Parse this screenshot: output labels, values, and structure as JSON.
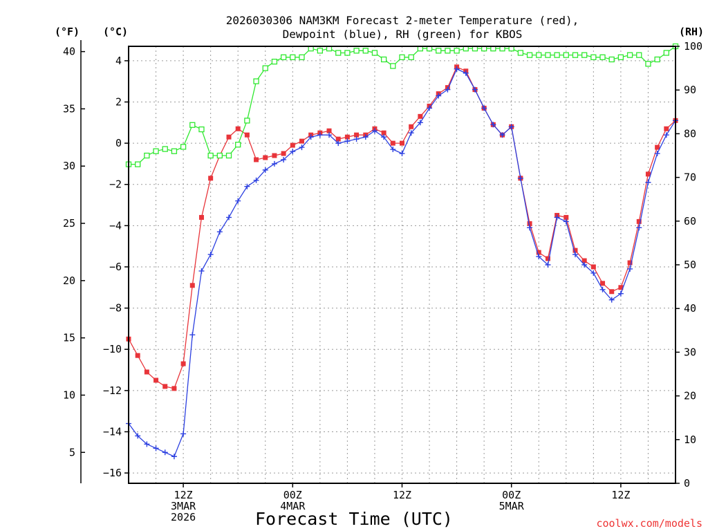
{
  "chart_data": {
    "type": "line",
    "title_lines": [
      "2026030306 NAM3KM Forecast 2-meter Temperature (red),",
      "Dewpoint (blue), RH (green) for KBOS"
    ],
    "xlabel": "Forecast Time (UTC)",
    "credit": "coolwx.com/models",
    "unit_labels": {
      "fahrenheit": "(°F)",
      "celsius": "(°C)",
      "rh": "(RH)"
    },
    "x_unit": "forecast hours from 2026-03-03 06Z",
    "xlim": [
      0,
      60
    ],
    "x_ticks": [
      {
        "hour": 6,
        "lines": [
          "12Z",
          "3MAR",
          "2026"
        ]
      },
      {
        "hour": 18,
        "lines": [
          "00Z",
          "4MAR"
        ]
      },
      {
        "hour": 30,
        "lines": [
          "12Z"
        ]
      },
      {
        "hour": 42,
        "lines": [
          "00Z",
          "5MAR"
        ]
      },
      {
        "hour": 54,
        "lines": [
          "12Z"
        ]
      }
    ],
    "y_celsius": {
      "lim": [
        -16.5,
        4.7
      ],
      "ticks": [
        -16,
        -14,
        -12,
        -10,
        -8,
        -6,
        -4,
        -2,
        0,
        2,
        4
      ]
    },
    "y_fahrenheit": {
      "ticks": [
        5,
        10,
        15,
        20,
        25,
        30,
        35,
        40
      ]
    },
    "y_rh": {
      "lim": [
        0,
        100
      ],
      "ticks": [
        0,
        10,
        20,
        30,
        40,
        50,
        60,
        70,
        80,
        90,
        100
      ]
    },
    "series": [
      {
        "name": "Temperature (red)",
        "axis": "celsius",
        "color": "#e8343a",
        "marker": "filled-square",
        "x": [
          0,
          1,
          2,
          3,
          4,
          5,
          6,
          7,
          8,
          9,
          10,
          11,
          12,
          13,
          14,
          15,
          16,
          17,
          18,
          19,
          20,
          21,
          22,
          23,
          24,
          25,
          26,
          27,
          28,
          29,
          30,
          31,
          32,
          33,
          34,
          35,
          36,
          37,
          38,
          39,
          40,
          41,
          42,
          43,
          44,
          45,
          46,
          47,
          48,
          49,
          50,
          51,
          52,
          53,
          54,
          55,
          56,
          57,
          58,
          59,
          60
        ],
        "values": [
          -9.5,
          -10.3,
          -11.1,
          -11.5,
          -11.8,
          -11.9,
          -10.7,
          -6.9,
          -3.6,
          -1.7,
          -0.6,
          0.3,
          0.7,
          0.4,
          -0.8,
          -0.7,
          -0.6,
          -0.5,
          -0.1,
          0.1,
          0.4,
          0.5,
          0.6,
          0.2,
          0.3,
          0.4,
          0.4,
          0.7,
          0.5,
          0.0,
          0.0,
          0.8,
          1.3,
          1.8,
          2.4,
          2.7,
          3.7,
          3.5,
          2.6,
          1.7,
          0.9,
          0.4,
          0.8,
          -1.7,
          -3.9,
          -5.3,
          -5.6,
          -3.5,
          -3.6,
          -5.2,
          -5.7,
          -6.0,
          -6.8,
          -7.2,
          -7.0,
          -5.8,
          -3.8,
          -1.5,
          -0.2,
          0.7,
          1.1
        ]
      },
      {
        "name": "Dewpoint (blue)",
        "axis": "celsius",
        "color": "#2b3fe0",
        "marker": "plus",
        "x": [
          0,
          1,
          2,
          3,
          4,
          5,
          6,
          7,
          8,
          9,
          10,
          11,
          12,
          13,
          14,
          15,
          16,
          17,
          18,
          19,
          20,
          21,
          22,
          23,
          24,
          25,
          26,
          27,
          28,
          29,
          30,
          31,
          32,
          33,
          34,
          35,
          36,
          37,
          38,
          39,
          40,
          41,
          42,
          43,
          44,
          45,
          46,
          47,
          48,
          49,
          50,
          51,
          52,
          53,
          54,
          55,
          56,
          57,
          58,
          59,
          60
        ],
        "values": [
          -13.6,
          -14.2,
          -14.6,
          -14.8,
          -15.0,
          -15.2,
          -14.1,
          -9.3,
          -6.2,
          -5.4,
          -4.3,
          -3.6,
          -2.8,
          -2.1,
          -1.8,
          -1.3,
          -1.0,
          -0.8,
          -0.4,
          -0.2,
          0.3,
          0.4,
          0.4,
          0.0,
          0.1,
          0.2,
          0.3,
          0.6,
          0.3,
          -0.3,
          -0.5,
          0.5,
          1.0,
          1.7,
          2.3,
          2.6,
          3.6,
          3.4,
          2.6,
          1.7,
          0.9,
          0.4,
          0.8,
          -1.7,
          -4.1,
          -5.5,
          -5.9,
          -3.6,
          -3.8,
          -5.4,
          -5.9,
          -6.3,
          -7.1,
          -7.6,
          -7.3,
          -6.1,
          -4.1,
          -1.9,
          -0.5,
          0.4,
          1.1
        ]
      },
      {
        "name": "RH (green)",
        "axis": "rh",
        "color": "#2ee82e",
        "marker": "open-square",
        "x": [
          0,
          1,
          2,
          3,
          4,
          5,
          6,
          7,
          8,
          9,
          10,
          11,
          12,
          13,
          14,
          15,
          16,
          17,
          18,
          19,
          20,
          21,
          22,
          23,
          24,
          25,
          26,
          27,
          28,
          29,
          30,
          31,
          32,
          33,
          34,
          35,
          36,
          37,
          38,
          39,
          40,
          41,
          42,
          43,
          44,
          45,
          46,
          47,
          48,
          49,
          50,
          51,
          52,
          53,
          54,
          55,
          56,
          57,
          58,
          59,
          60
        ],
        "values": [
          73,
          73,
          75,
          76,
          76.5,
          76,
          77,
          82,
          81,
          75,
          75,
          75,
          77.5,
          83,
          92,
          95,
          96.5,
          97.5,
          97.5,
          97.5,
          99.5,
          99,
          99.5,
          98.5,
          98.5,
          99,
          99,
          98.5,
          97,
          95.5,
          97.5,
          97.5,
          99.5,
          99.5,
          99,
          99,
          99,
          99.5,
          99.5,
          99.5,
          99.5,
          99.5,
          99.5,
          98.5,
          98,
          98,
          98,
          98,
          98,
          98,
          98,
          97.5,
          97.5,
          97,
          97.5,
          98,
          98,
          96,
          97,
          98.5,
          100
        ]
      }
    ]
  }
}
